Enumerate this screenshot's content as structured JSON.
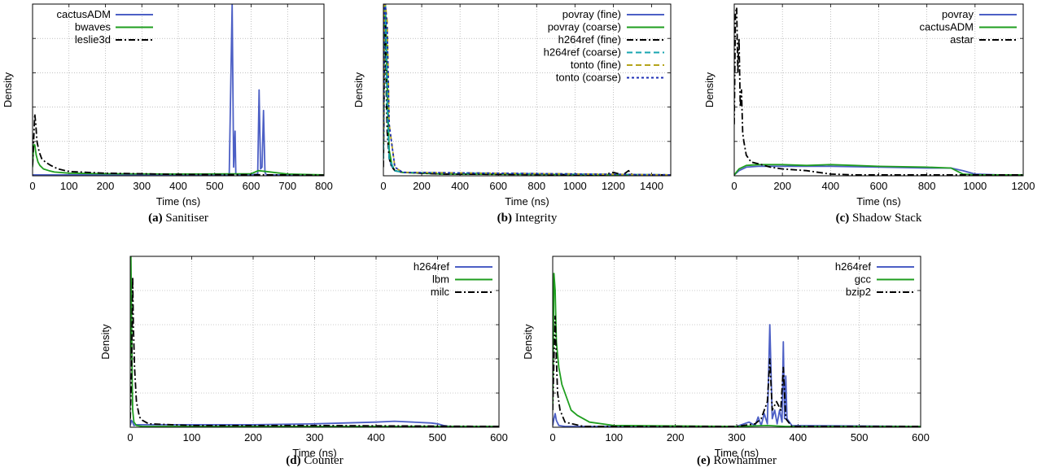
{
  "chart_data": [
    {
      "id": "a",
      "type": "line",
      "caption_label": "(a)",
      "caption": "Sanitiser",
      "xlabel": "Time (ns)",
      "ylabel": "Density",
      "xlim": [
        0,
        800
      ],
      "ylim": [
        0,
        1
      ],
      "x_ticks": [
        "0",
        "100",
        "200",
        "300",
        "400",
        "500",
        "600",
        "700",
        "800"
      ],
      "y_grid_count": 5,
      "grid": true,
      "legend_position": "top-left",
      "series": [
        {
          "name": "cactusADM",
          "color": "#4c5fc5",
          "style": "solid",
          "x": [
            0,
            500,
            540,
            548,
            552,
            556,
            558,
            562,
            566,
            600,
            618,
            622,
            626,
            630,
            634,
            638,
            642,
            800
          ],
          "y": [
            0.005,
            0.005,
            0.006,
            1.0,
            0.05,
            0.26,
            0.01,
            0.005,
            0.005,
            0.005,
            0.01,
            0.5,
            0.04,
            0.05,
            0.38,
            0.02,
            0.005,
            0.005
          ]
        },
        {
          "name": "bwaves",
          "color": "#1f9e1f",
          "style": "solid",
          "x": [
            0,
            3,
            6,
            10,
            15,
            20,
            30,
            45,
            60,
            100,
            200,
            400,
            600,
            620,
            640,
            700,
            800
          ],
          "y": [
            0.05,
            0.18,
            0.18,
            0.12,
            0.08,
            0.06,
            0.04,
            0.03,
            0.022,
            0.015,
            0.012,
            0.01,
            0.012,
            0.03,
            0.025,
            0.01,
            0.005
          ]
        },
        {
          "name": "leslie3d",
          "color": "#000000",
          "style": "dashdot",
          "x": [
            0,
            3,
            6,
            9,
            12,
            18,
            25,
            35,
            50,
            70,
            100,
            200,
            400,
            600,
            800
          ],
          "y": [
            0.06,
            0.2,
            0.36,
            0.3,
            0.2,
            0.14,
            0.1,
            0.08,
            0.06,
            0.04,
            0.025,
            0.015,
            0.008,
            0.006,
            0.004
          ]
        }
      ]
    },
    {
      "id": "b",
      "type": "line",
      "caption_label": "(b)",
      "caption": "Integrity",
      "xlabel": "Time (ns)",
      "ylabel": "Density",
      "xlim": [
        0,
        1500
      ],
      "ylim": [
        0,
        1
      ],
      "x_ticks": [
        "0",
        "200",
        "400",
        "600",
        "800",
        "1000",
        "1200",
        "1400"
      ],
      "y_grid_count": 5,
      "grid": true,
      "legend_position": "top-right",
      "series": [
        {
          "name": "povray (fine)",
          "color": "#4c5fc5",
          "style": "solid",
          "x": [
            0,
            5,
            10,
            20,
            30,
            40,
            60,
            100,
            300,
            1500
          ],
          "y": [
            0.1,
            0.9,
            1.0,
            0.5,
            0.12,
            0.06,
            0.03,
            0.02,
            0.01,
            0.005
          ]
        },
        {
          "name": "povray (coarse)",
          "color": "#1f9e1f",
          "style": "solid",
          "x": [
            0,
            5,
            10,
            20,
            30,
            45,
            60,
            100,
            300,
            1500
          ],
          "y": [
            0.1,
            0.95,
            1.0,
            0.55,
            0.15,
            0.06,
            0.03,
            0.02,
            0.01,
            0.005
          ]
        },
        {
          "name": "h264ref (fine)",
          "color": "#000000",
          "style": "dashdot",
          "x": [
            0,
            5,
            10,
            15,
            20,
            30,
            45,
            60,
            100,
            300,
            1150,
            1200,
            1250,
            1280,
            1300,
            1350,
            1500
          ],
          "y": [
            0.05,
            0.6,
            0.88,
            0.5,
            0.25,
            0.1,
            0.05,
            0.03,
            0.02,
            0.01,
            0.005,
            0.02,
            0.005,
            0.03,
            0.005,
            0.005,
            0.005
          ]
        },
        {
          "name": "h264ref (coarse)",
          "color": "#17a5b0",
          "style": "dashed",
          "x": [
            0,
            5,
            10,
            20,
            30,
            60,
            100,
            1500
          ],
          "y": [
            0.1,
            0.9,
            1.0,
            0.4,
            0.1,
            0.03,
            0.02,
            0.005
          ]
        },
        {
          "name": "tonto (fine)",
          "color": "#b5a41c",
          "style": "dashed",
          "x": [
            0,
            5,
            10,
            20,
            30,
            60,
            100,
            1500
          ],
          "y": [
            0.2,
            1.0,
            1.0,
            0.9,
            0.3,
            0.05,
            0.02,
            0.005
          ]
        },
        {
          "name": "tonto (coarse)",
          "color": "#1d2fb5",
          "style": "dotted",
          "x": [
            0,
            5,
            10,
            20,
            30,
            60,
            100,
            1500
          ],
          "y": [
            0.2,
            1.0,
            1.0,
            0.85,
            0.3,
            0.05,
            0.02,
            0.005
          ]
        }
      ]
    },
    {
      "id": "c",
      "type": "line",
      "caption_label": "(c)",
      "caption": "Shadow Stack",
      "xlabel": "Time (ns)",
      "ylabel": "Density",
      "xlim": [
        0,
        1200
      ],
      "ylim": [
        0,
        1
      ],
      "x_ticks": [
        "0",
        "200",
        "400",
        "600",
        "800",
        "1000",
        "1200"
      ],
      "y_grid_count": 5,
      "grid": true,
      "legend_position": "top-right",
      "series": [
        {
          "name": "povray",
          "color": "#4c5fc5",
          "style": "solid",
          "x": [
            0,
            20,
            50,
            100,
            200,
            400,
            600,
            800,
            900,
            950,
            1000,
            1100,
            1200
          ],
          "y": [
            0.005,
            0.03,
            0.05,
            0.055,
            0.055,
            0.055,
            0.05,
            0.045,
            0.045,
            0.03,
            0.01,
            0.005,
            0.005
          ]
        },
        {
          "name": "cactusADM",
          "color": "#1f9e1f",
          "style": "solid",
          "x": [
            0,
            20,
            50,
            100,
            200,
            300,
            400,
            500,
            600,
            800,
            900,
            950,
            1000,
            1200
          ],
          "y": [
            0.005,
            0.04,
            0.06,
            0.065,
            0.065,
            0.06,
            0.065,
            0.06,
            0.055,
            0.05,
            0.045,
            0.01,
            0.005,
            0.005
          ]
        },
        {
          "name": "astar",
          "color": "#000000",
          "style": "dashdot",
          "x": [
            0,
            5,
            10,
            15,
            20,
            25,
            30,
            35,
            40,
            50,
            70,
            100,
            150,
            200,
            300,
            400,
            500,
            1200
          ],
          "y": [
            0.3,
            0.95,
            0.98,
            0.6,
            0.8,
            0.4,
            0.5,
            0.25,
            0.2,
            0.12,
            0.08,
            0.07,
            0.05,
            0.04,
            0.03,
            0.01,
            0.005,
            0.005
          ]
        }
      ]
    },
    {
      "id": "d",
      "type": "line",
      "caption_label": "(d)",
      "caption": "Counter",
      "xlabel": "Time (ns)",
      "ylabel": "Density",
      "xlim": [
        0,
        600
      ],
      "ylim": [
        0,
        1
      ],
      "x_ticks": [
        "0",
        "100",
        "200",
        "300",
        "400",
        "500",
        "600"
      ],
      "y_grid_count": 5,
      "grid": true,
      "legend_position": "top-right",
      "series": [
        {
          "name": "h264ref",
          "color": "#4c5fc5",
          "style": "solid",
          "x": [
            0,
            2,
            4,
            6,
            10,
            50,
            200,
            300,
            400,
            430,
            460,
            490,
            500,
            510,
            520,
            600
          ],
          "y": [
            0.01,
            0.04,
            0.03,
            0.01,
            0.015,
            0.015,
            0.015,
            0.02,
            0.03,
            0.035,
            0.03,
            0.025,
            0.02,
            0.01,
            0.005,
            0.005
          ]
        },
        {
          "name": "lbm",
          "color": "#1f9e1f",
          "style": "solid",
          "x": [
            0,
            1,
            2,
            3,
            4,
            6,
            10,
            20,
            600
          ],
          "y": [
            0.4,
            1.0,
            0.7,
            0.3,
            0.1,
            0.03,
            0.01,
            0.005,
            0.005
          ]
        },
        {
          "name": "milc",
          "color": "#000000",
          "style": "dashdot",
          "x": [
            0,
            2,
            4,
            5,
            7,
            10,
            15,
            20,
            30,
            100,
            300,
            600
          ],
          "y": [
            0.05,
            0.3,
            0.88,
            0.6,
            0.35,
            0.15,
            0.06,
            0.04,
            0.02,
            0.01,
            0.01,
            0.005
          ]
        }
      ]
    },
    {
      "id": "e",
      "type": "line",
      "caption_label": "(e)",
      "caption": "Rowhammer",
      "xlabel": "Time (ns)",
      "ylabel": "Density",
      "xlim": [
        0,
        600
      ],
      "ylim": [
        0,
        1
      ],
      "x_ticks": [
        "0",
        "100",
        "200",
        "300",
        "400",
        "500",
        "600"
      ],
      "y_grid_count": 5,
      "grid": true,
      "legend_position": "top-right",
      "series": [
        {
          "name": "h264ref",
          "color": "#4c5fc5",
          "style": "solid",
          "x": [
            0,
            2,
            4,
            6,
            10,
            20,
            300,
            320,
            330,
            335,
            340,
            345,
            350,
            354,
            358,
            362,
            366,
            370,
            374,
            376,
            378,
            380,
            382,
            390,
            600
          ],
          "y": [
            0.01,
            0.05,
            0.08,
            0.04,
            0.01,
            0.005,
            0.005,
            0.03,
            0.01,
            0.06,
            0.01,
            0.08,
            0.02,
            0.6,
            0.05,
            0.1,
            0.02,
            0.1,
            0.03,
            0.5,
            0.05,
            0.3,
            0.05,
            0.01,
            0.005
          ]
        },
        {
          "name": "gcc",
          "color": "#1f9e1f",
          "style": "solid",
          "x": [
            0,
            2,
            4,
            6,
            10,
            15,
            20,
            30,
            40,
            60,
            100,
            300,
            350,
            380,
            600
          ],
          "y": [
            0.1,
            0.9,
            0.8,
            0.5,
            0.35,
            0.25,
            0.2,
            0.1,
            0.07,
            0.03,
            0.01,
            0.005,
            0.01,
            0.005,
            0.005
          ]
        },
        {
          "name": "bzip2",
          "color": "#000000",
          "style": "dashdot",
          "x": [
            0,
            2,
            4,
            6,
            8,
            12,
            20,
            50,
            300,
            330,
            340,
            350,
            354,
            358,
            365,
            372,
            376,
            380,
            390,
            500,
            600
          ],
          "y": [
            0.1,
            0.4,
            0.65,
            0.4,
            0.2,
            0.1,
            0.03,
            0.005,
            0.005,
            0.02,
            0.05,
            0.15,
            0.4,
            0.1,
            0.15,
            0.1,
            0.35,
            0.05,
            0.005,
            0.005,
            0.005
          ]
        }
      ]
    }
  ]
}
